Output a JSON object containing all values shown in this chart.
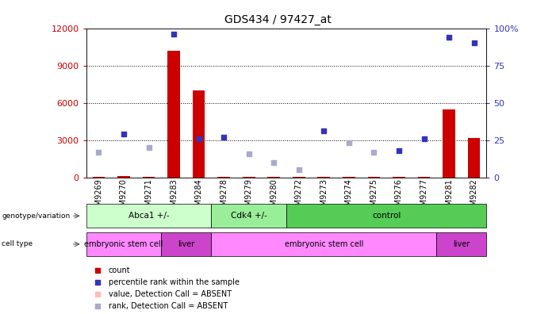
{
  "title": "GDS434 / 97427_at",
  "samples": [
    "GSM9269",
    "GSM9270",
    "GSM9271",
    "GSM9283",
    "GSM9284",
    "GSM9278",
    "GSM9279",
    "GSM9280",
    "GSM9272",
    "GSM9273",
    "GSM9274",
    "GSM9275",
    "GSM9276",
    "GSM9277",
    "GSM9281",
    "GSM9282"
  ],
  "count_values": [
    50,
    100,
    50,
    10200,
    7000,
    50,
    50,
    50,
    50,
    50,
    50,
    50,
    50,
    50,
    5500,
    3200
  ],
  "count_absent": [
    false,
    false,
    false,
    false,
    false,
    false,
    false,
    false,
    false,
    false,
    false,
    false,
    false,
    false,
    false,
    false
  ],
  "rank_values": [
    17,
    29,
    20,
    96,
    26,
    27,
    16,
    10,
    5,
    31,
    23,
    17,
    18,
    26,
    94,
    90
  ],
  "rank_absent": [
    true,
    false,
    true,
    false,
    false,
    false,
    true,
    true,
    true,
    false,
    true,
    true,
    false,
    false,
    false,
    false
  ],
  "ylim_left": [
    0,
    12000
  ],
  "ylim_right": [
    0,
    100
  ],
  "yticks_left": [
    0,
    3000,
    6000,
    9000,
    12000
  ],
  "yticks_right": [
    0,
    25,
    50,
    75,
    100
  ],
  "genotype_groups": [
    {
      "label": "Abca1 +/-",
      "start": 0,
      "end": 5,
      "color": "#ccffcc"
    },
    {
      "label": "Cdk4 +/-",
      "start": 5,
      "end": 8,
      "color": "#99ee99"
    },
    {
      "label": "control",
      "start": 8,
      "end": 16,
      "color": "#55cc55"
    }
  ],
  "celltype_groups": [
    {
      "label": "embryonic stem cell",
      "start": 0,
      "end": 3,
      "color": "#ff88ff"
    },
    {
      "label": "liver",
      "start": 3,
      "end": 5,
      "color": "#cc44cc"
    },
    {
      "label": "embryonic stem cell",
      "start": 5,
      "end": 14,
      "color": "#ff88ff"
    },
    {
      "label": "liver",
      "start": 14,
      "end": 16,
      "color": "#cc44cc"
    }
  ],
  "bar_color_present": "#cc0000",
  "bar_color_absent": "#ffbbbb",
  "rank_color_present": "#3333bb",
  "rank_color_absent": "#aaaacc",
  "bar_width": 0.5,
  "legend_items": [
    {
      "color": "#cc0000",
      "label": "count"
    },
    {
      "color": "#3333bb",
      "label": "percentile rank within the sample"
    },
    {
      "color": "#ffbbbb",
      "label": "value, Detection Call = ABSENT"
    },
    {
      "color": "#aaaacc",
      "label": "rank, Detection Call = ABSENT"
    }
  ],
  "left_ylabel_color": "#cc0000",
  "right_ylabel_color": "#3333bb",
  "background_color": "#ffffff"
}
